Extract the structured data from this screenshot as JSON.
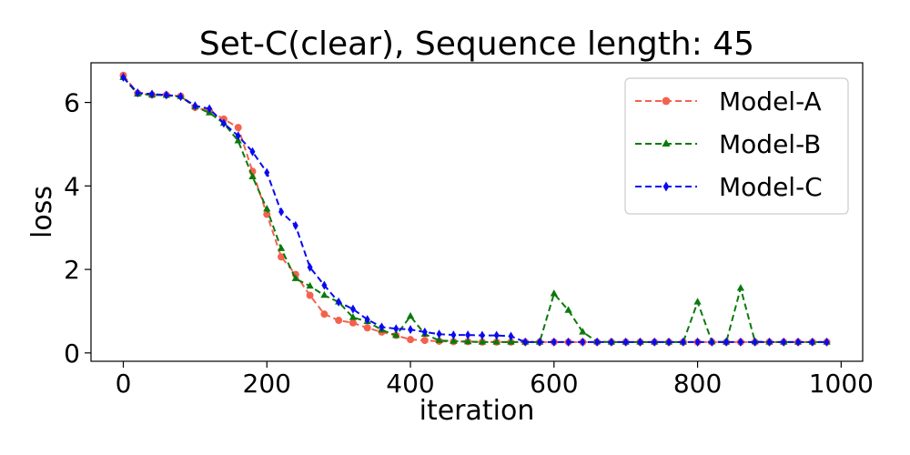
{
  "chart_data": {
    "type": "line",
    "title": "Set-C(clear), Sequence length: 45",
    "xlabel": "iteration",
    "ylabel": "loss",
    "xlim": [
      -45,
      1030
    ],
    "ylim": [
      -0.2,
      6.95
    ],
    "xticks": [
      0,
      200,
      400,
      600,
      800,
      1000
    ],
    "yticks": [
      0,
      2,
      4,
      6
    ],
    "grid": false,
    "legend_position": "top-right",
    "x": [
      0,
      20,
      40,
      60,
      80,
      100,
      120,
      140,
      160,
      180,
      200,
      220,
      240,
      260,
      280,
      300,
      320,
      340,
      360,
      380,
      400,
      420,
      440,
      460,
      480,
      500,
      520,
      540,
      560,
      580,
      600,
      620,
      640,
      660,
      680,
      700,
      720,
      740,
      760,
      780,
      800,
      820,
      840,
      860,
      880,
      900,
      920,
      940,
      960,
      980
    ],
    "series": [
      {
        "name": "Model-A",
        "color": "#f4624e",
        "marker": "circle",
        "values": [
          6.65,
          6.22,
          6.18,
          6.18,
          6.15,
          5.88,
          5.8,
          5.6,
          5.4,
          4.35,
          3.32,
          2.3,
          1.88,
          1.38,
          0.93,
          0.78,
          0.72,
          0.6,
          0.5,
          0.42,
          0.32,
          0.3,
          0.28,
          0.27,
          0.27,
          0.26,
          0.26,
          0.26,
          0.26,
          0.26,
          0.26,
          0.26,
          0.26,
          0.26,
          0.26,
          0.26,
          0.26,
          0.26,
          0.26,
          0.26,
          0.26,
          0.26,
          0.26,
          0.26,
          0.26,
          0.26,
          0.26,
          0.26,
          0.26,
          0.26
        ]
      },
      {
        "name": "Model-B",
        "color": "#0a7a0a",
        "marker": "triangle",
        "values": [
          6.6,
          6.2,
          6.18,
          6.17,
          6.14,
          5.9,
          5.75,
          5.5,
          5.08,
          4.22,
          3.45,
          2.5,
          1.78,
          1.6,
          1.38,
          1.22,
          0.85,
          0.75,
          0.55,
          0.42,
          0.88,
          0.45,
          0.3,
          0.28,
          0.27,
          0.26,
          0.26,
          0.26,
          0.26,
          0.26,
          1.42,
          1.02,
          0.5,
          0.27,
          0.26,
          0.26,
          0.26,
          0.26,
          0.26,
          0.26,
          1.22,
          0.27,
          0.26,
          1.55,
          0.27,
          0.26,
          0.26,
          0.26,
          0.26,
          0.26
        ]
      },
      {
        "name": "Model-C",
        "color": "#0a0af0",
        "marker": "diamond",
        "values": [
          6.6,
          6.23,
          6.2,
          6.18,
          6.14,
          5.92,
          5.85,
          5.5,
          5.2,
          4.82,
          4.32,
          3.38,
          3.05,
          2.05,
          1.62,
          1.22,
          1.05,
          0.8,
          0.62,
          0.58,
          0.56,
          0.5,
          0.45,
          0.43,
          0.43,
          0.42,
          0.42,
          0.4,
          0.26,
          0.26,
          0.26,
          0.26,
          0.26,
          0.26,
          0.26,
          0.26,
          0.26,
          0.26,
          0.26,
          0.26,
          0.26,
          0.26,
          0.26,
          0.26,
          0.26,
          0.26,
          0.26,
          0.26,
          0.26,
          0.26
        ]
      }
    ]
  }
}
